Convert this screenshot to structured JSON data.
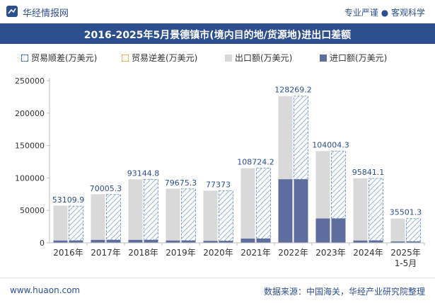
{
  "header": {
    "brand": "华经情报网",
    "tagline": "专业严谨 ● 客观科学",
    "title": "2016-2025年5月景德镇市(境内目的地/货源地)进出口差额"
  },
  "legend": {
    "surplus": "贸易顺差(万美元)",
    "deficit": "贸易逆差(万美元)",
    "export": "出口额(万美元)",
    "import": "进口额(万美元)"
  },
  "footer": {
    "site": "www.huaon.com",
    "source": "数据来源：中国海关，华经产业研究院整理"
  },
  "colors": {
    "brand": "#2d4f8f",
    "export": "#d9d9d9",
    "import": "#5c6d9e",
    "surplus_hatch": "#7d9cc9",
    "deficit": "#e8b23a"
  },
  "chart_data": {
    "type": "bar",
    "categories": [
      "2016年",
      "2017年",
      "2018年",
      "2019年",
      "2020年",
      "2021年",
      "2022年",
      "2023年",
      "2024年",
      "2025年\n1-5月"
    ],
    "series": [
      {
        "name": "出口额(万美元)",
        "values": [
          57500,
          75000,
          98000,
          83500,
          80500,
          115000,
          226000,
          141500,
          99500,
          37500
        ]
      },
      {
        "name": "进口额(万美元)",
        "values": [
          3500,
          4500,
          4500,
          3500,
          3000,
          6500,
          98000,
          37500,
          3500,
          2000
        ]
      },
      {
        "name": "贸易顺差(万美元)",
        "values": [
          53109.9,
          70005.3,
          93144.8,
          79675.3,
          77373,
          108724.2,
          128269.2,
          104004.3,
          95841.1,
          35501.3
        ]
      }
    ],
    "data_labels": [
      "53109.9",
      "70005.3",
      "93144.8",
      "79675.3",
      "77373",
      "108724.2",
      "128269.2",
      "104004.3",
      "95841.1",
      "35501.3"
    ],
    "yticks": [
      "0",
      "50000",
      "100000",
      "150000",
      "200000",
      "250000"
    ],
    "ylim": [
      0,
      250000
    ],
    "grid": false
  }
}
